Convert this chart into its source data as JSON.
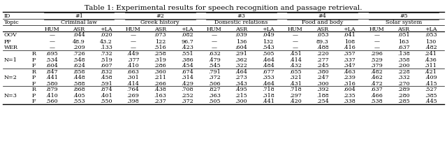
{
  "title": "Table 1: Experimental results for speech recognition and passage retrieval.",
  "topic_names": [
    "Criminal law",
    "Greek history",
    "Domestic relations",
    "Food and body",
    "Solar system"
  ],
  "row_labels_special": [
    "OOV",
    "PP",
    "WER"
  ],
  "data_special": [
    [
      "—",
      ".044",
      ".020",
      "—",
      ".073",
      ".082",
      "—",
      ".039",
      ".049",
      "—",
      ".053",
      ".041",
      "—",
      ".051",
      ".053"
    ],
    [
      "—",
      "48.9",
      "43.2",
      "—",
      "122",
      "96.7",
      "—",
      "136",
      "132",
      "—",
      "89.3",
      "108",
      "—",
      "163",
      "130"
    ],
    [
      "—",
      ".209",
      ".133",
      "—",
      ".516",
      ".423",
      "—",
      ".604",
      ".543",
      "—",
      ".488",
      ".416",
      "—",
      ".637",
      ".482"
    ]
  ],
  "n_labels": [
    "N=1",
    "N=2",
    "N=3"
  ],
  "sub_labels": [
    "R",
    "P",
    "F"
  ],
  "data_n": [
    [
      [
        ".695",
        ".726",
        ".732",
        ".449",
        ".258",
        ".551",
        ".632",
        ".291",
        ".505",
        ".451",
        ".220",
        ".357",
        ".296",
        ".138",
        ".241"
      ],
      [
        ".534",
        ".548",
        ".519",
        ".377",
        ".319",
        ".386",
        ".479",
        ".362",
        ".464",
        ".414",
        ".277",
        ".337",
        ".529",
        ".358",
        ".436"
      ],
      [
        ".604",
        ".624",
        ".607",
        ".410",
        ".286",
        ".454",
        ".545",
        ".322",
        ".484",
        ".432",
        ".245",
        ".347",
        ".379",
        ".200",
        ".311"
      ]
    ],
    [
      [
        ".847",
        ".858",
        ".832",
        ".663",
        ".360",
        ".674",
        ".791",
        ".464",
        ".677",
        ".655",
        ".380",
        ".463",
        ".482",
        ".228",
        ".421"
      ],
      [
        ".441",
        ".448",
        ".458",
        ".301",
        ".211",
        ".314",
        ".372",
        ".273",
        ".353",
        ".321",
        ".247",
        ".239",
        ".462",
        ".332",
        ".409"
      ],
      [
        ".580",
        ".588",
        ".591",
        ".414",
        ".266",
        ".429",
        ".506",
        ".343",
        ".464",
        ".431",
        ".300",
        ".316",
        ".472",
        ".270",
        ".415"
      ]
    ],
    [
      [
        ".879",
        ".868",
        ".874",
        ".764",
        ".438",
        ".708",
        ".827",
        ".495",
        ".718",
        ".718",
        ".392",
        ".604",
        ".637",
        ".289",
        ".527"
      ],
      [
        ".410",
        ".405",
        ".401",
        ".269",
        ".163",
        ".252",
        ".363",
        ".215",
        ".318",
        ".297",
        ".188",
        ".235",
        ".466",
        ".280",
        ".385"
      ],
      [
        ".560",
        ".553",
        ".550",
        ".398",
        ".237",
        ".372",
        ".505",
        ".300",
        ".441",
        ".420",
        ".254",
        ".338",
        ".538",
        ".285",
        ".445"
      ]
    ]
  ],
  "bg_color": "#ffffff",
  "text_color": "#000000",
  "font_size": 5.8,
  "title_font_size": 7.5
}
